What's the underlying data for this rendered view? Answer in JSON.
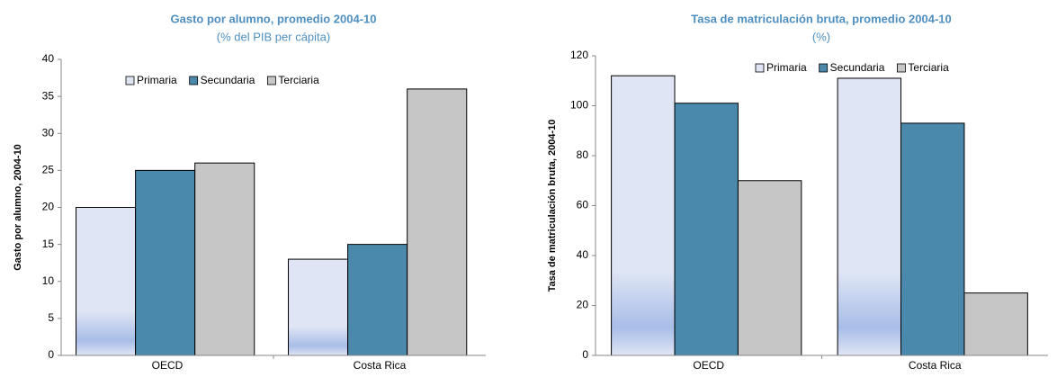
{
  "chart_data": [
    {
      "type": "bar",
      "title": "Gasto por alumno, promedio 2004-10",
      "subtitle": "(% del PIB per cápita)",
      "y_label": "Gasto por alumno, 2004-10",
      "categories": [
        "OECD",
        "Costa Rica"
      ],
      "series": [
        {
          "name": "Primaria",
          "color": "#dfe5f4",
          "values": [
            20,
            13
          ]
        },
        {
          "name": "Secundaria",
          "color": "#4a89ab",
          "values": [
            25,
            15
          ]
        },
        {
          "name": "Terciaria",
          "color": "#c6c6c6",
          "values": [
            26,
            36
          ]
        }
      ],
      "ylim": [
        0,
        40
      ],
      "yticks": [
        0,
        5,
        10,
        15,
        20,
        25,
        30,
        35,
        40
      ],
      "grid": false
    },
    {
      "type": "bar",
      "title": "Tasa de matriculación  bruta, promedio 2004-10",
      "subtitle": "(%)",
      "y_label": "Tasa de matriculación  bruta, 2004-10",
      "categories": [
        "OECD",
        "Costa Rica"
      ],
      "series": [
        {
          "name": "Primaria",
          "color": "#dfe5f4",
          "values": [
            112,
            111
          ]
        },
        {
          "name": "Secundaria",
          "color": "#4a89ab",
          "values": [
            101,
            93
          ]
        },
        {
          "name": "Terciaria",
          "color": "#c6c6c6",
          "values": [
            70,
            25
          ]
        }
      ],
      "ylim": [
        0,
        120
      ],
      "yticks": [
        0,
        20,
        40,
        60,
        80,
        100,
        120
      ],
      "grid": false
    }
  ]
}
